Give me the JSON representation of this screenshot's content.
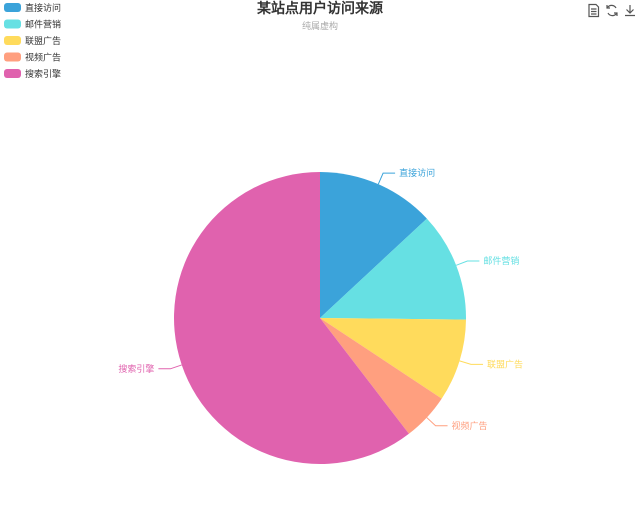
{
  "chart_data": {
    "type": "pie",
    "title": "某站点用户访问来源",
    "subtitle": "纯属虚构",
    "legend_position": "top-left",
    "start_angle_deg": 90,
    "direction": "clockwise",
    "categories": [
      "直接访问",
      "邮件营销",
      "联盟广告",
      "视频广告",
      "搜索引擎"
    ],
    "values": [
      335,
      310,
      234,
      135,
      1548
    ],
    "colors": [
      "#3ba3da",
      "#66e0e3",
      "#ffdb5c",
      "#ff9f7f",
      "#e062ae"
    ]
  },
  "toolbox": {
    "icons": [
      "data-view-icon",
      "restore-icon",
      "save-image-icon"
    ]
  }
}
